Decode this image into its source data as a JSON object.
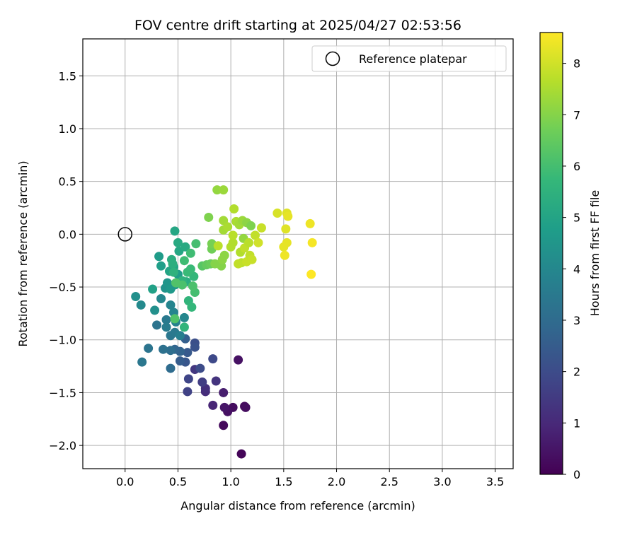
{
  "chart_data": {
    "type": "scatter",
    "title": "FOV centre drift starting at 2025/04/27 02:53:56",
    "xlabel": "Angular distance from reference (arcmin)",
    "ylabel": "Rotation from reference (arcmin)",
    "xlim": [
      -0.4,
      3.67
    ],
    "ylim": [
      -2.22,
      1.85
    ],
    "xticks": [
      0.0,
      0.5,
      1.0,
      1.5,
      2.0,
      2.5,
      3.0,
      3.5
    ],
    "xtick_labels": [
      "0.0",
      "0.5",
      "1.0",
      "1.5",
      "2.0",
      "2.5",
      "3.0",
      "3.5"
    ],
    "yticks": [
      1.5,
      1.0,
      0.5,
      0.0,
      -0.5,
      -1.0,
      -1.5,
      -2.0
    ],
    "ytick_labels": [
      "1.5",
      "1.0",
      "0.5",
      "0.0",
      "−0.5",
      "−1.0",
      "−1.5",
      "−2.0"
    ],
    "grid": true,
    "legend": {
      "position": "top-right",
      "entries": [
        {
          "label": "Reference platepar",
          "marker": "open-circle"
        }
      ]
    },
    "reference_point": {
      "x": 0.0,
      "y": 0.0
    },
    "colorbar": {
      "label": "Hours from first FF file",
      "colormap": "viridis",
      "range": [
        0,
        8.6
      ],
      "ticks": [
        0,
        1,
        2,
        3,
        4,
        5,
        6,
        7,
        8
      ],
      "tick_labels": [
        "0",
        "1",
        "2",
        "3",
        "4",
        "5",
        "6",
        "7",
        "8"
      ]
    },
    "colormap_stops": [
      "#440154",
      "#482878",
      "#3e4989",
      "#31688e",
      "#26828e",
      "#1f9e89",
      "#35b779",
      "#6ece58",
      "#b5de2b",
      "#fde725"
    ],
    "points": [
      {
        "x": 1.1,
        "y": -2.08,
        "c": 0.1
      },
      {
        "x": 0.93,
        "y": -1.81,
        "c": 0.2
      },
      {
        "x": 1.02,
        "y": -1.64,
        "c": 0.3
      },
      {
        "x": 1.13,
        "y": -1.63,
        "c": 0.2
      },
      {
        "x": 1.14,
        "y": -1.64,
        "c": 0.3
      },
      {
        "x": 0.97,
        "y": -1.68,
        "c": 0.4
      },
      {
        "x": 0.94,
        "y": -1.64,
        "c": 0.5
      },
      {
        "x": 1.07,
        "y": -1.19,
        "c": 0.4
      },
      {
        "x": 0.93,
        "y": -1.5,
        "c": 0.7
      },
      {
        "x": 0.83,
        "y": -1.62,
        "c": 0.9
      },
      {
        "x": 0.76,
        "y": -1.49,
        "c": 1.1
      },
      {
        "x": 0.76,
        "y": -1.46,
        "c": 1.2
      },
      {
        "x": 0.86,
        "y": -1.39,
        "c": 1.3
      },
      {
        "x": 0.66,
        "y": -1.28,
        "c": 1.4
      },
      {
        "x": 0.73,
        "y": -1.4,
        "c": 1.6
      },
      {
        "x": 0.59,
        "y": -1.49,
        "c": 1.7
      },
      {
        "x": 0.6,
        "y": -1.37,
        "c": 1.8
      },
      {
        "x": 0.83,
        "y": -1.18,
        "c": 1.9
      },
      {
        "x": 0.71,
        "y": -1.27,
        "c": 2.0
      },
      {
        "x": 0.66,
        "y": -1.03,
        "c": 2.1
      },
      {
        "x": 0.66,
        "y": -1.07,
        "c": 2.2
      },
      {
        "x": 0.57,
        "y": -1.21,
        "c": 2.3
      },
      {
        "x": 0.59,
        "y": -1.12,
        "c": 2.4
      },
      {
        "x": 0.52,
        "y": -1.2,
        "c": 2.5
      },
      {
        "x": 0.57,
        "y": -0.99,
        "c": 2.6
      },
      {
        "x": 0.52,
        "y": -1.11,
        "c": 2.7
      },
      {
        "x": 0.47,
        "y": -1.09,
        "c": 2.8
      },
      {
        "x": 0.43,
        "y": -1.27,
        "c": 3.0
      },
      {
        "x": 0.43,
        "y": -1.1,
        "c": 3.1
      },
      {
        "x": 0.36,
        "y": -1.09,
        "c": 3.2
      },
      {
        "x": 0.22,
        "y": -1.08,
        "c": 3.3
      },
      {
        "x": 0.16,
        "y": -1.21,
        "c": 3.4
      },
      {
        "x": 0.3,
        "y": -0.86,
        "c": 3.3
      },
      {
        "x": 0.39,
        "y": -0.81,
        "c": 3.5
      },
      {
        "x": 0.39,
        "y": -0.88,
        "c": 3.6
      },
      {
        "x": 0.43,
        "y": -0.96,
        "c": 3.4
      },
      {
        "x": 0.47,
        "y": -0.93,
        "c": 3.5
      },
      {
        "x": 0.52,
        "y": -0.96,
        "c": 3.7
      },
      {
        "x": 0.48,
        "y": -0.83,
        "c": 3.8
      },
      {
        "x": 0.43,
        "y": -0.67,
        "c": 3.9
      },
      {
        "x": 0.46,
        "y": -0.74,
        "c": 3.9
      },
      {
        "x": 0.56,
        "y": -0.79,
        "c": 4.0
      },
      {
        "x": 0.34,
        "y": -0.61,
        "c": 4.0
      },
      {
        "x": 0.15,
        "y": -0.67,
        "c": 4.1
      },
      {
        "x": 0.1,
        "y": -0.59,
        "c": 4.3
      },
      {
        "x": 0.28,
        "y": -0.72,
        "c": 4.3
      },
      {
        "x": 0.38,
        "y": -0.51,
        "c": 4.4
      },
      {
        "x": 0.4,
        "y": -0.46,
        "c": 4.5
      },
      {
        "x": 0.43,
        "y": -0.52,
        "c": 4.6
      },
      {
        "x": 0.47,
        "y": -0.48,
        "c": 4.6
      },
      {
        "x": 0.5,
        "y": -0.38,
        "c": 4.7
      },
      {
        "x": 0.34,
        "y": -0.3,
        "c": 4.8
      },
      {
        "x": 0.32,
        "y": -0.21,
        "c": 4.7
      },
      {
        "x": 0.26,
        "y": -0.52,
        "c": 4.9
      },
      {
        "x": 0.42,
        "y": -0.35,
        "c": 5.0
      },
      {
        "x": 0.46,
        "y": -0.31,
        "c": 5.0
      },
      {
        "x": 0.51,
        "y": -0.16,
        "c": 5.1
      },
      {
        "x": 0.47,
        "y": 0.03,
        "c": 5.1
      },
      {
        "x": 0.5,
        "y": -0.08,
        "c": 5.2
      },
      {
        "x": 0.57,
        "y": -0.12,
        "c": 5.2
      },
      {
        "x": 0.58,
        "y": -0.45,
        "c": 5.3
      },
      {
        "x": 0.44,
        "y": -0.24,
        "c": 5.3
      },
      {
        "x": 0.45,
        "y": -0.28,
        "c": 5.4
      },
      {
        "x": 0.46,
        "y": -0.36,
        "c": 5.5
      },
      {
        "x": 0.54,
        "y": -0.44,
        "c": 5.5
      },
      {
        "x": 0.56,
        "y": -0.88,
        "c": 5.6
      },
      {
        "x": 0.6,
        "y": -0.63,
        "c": 5.6
      },
      {
        "x": 0.63,
        "y": -0.69,
        "c": 5.7
      },
      {
        "x": 0.65,
        "y": -0.4,
        "c": 5.7
      },
      {
        "x": 0.59,
        "y": -0.36,
        "c": 5.8
      },
      {
        "x": 0.62,
        "y": -0.33,
        "c": 5.8
      },
      {
        "x": 0.56,
        "y": -0.25,
        "c": 5.9
      },
      {
        "x": 0.62,
        "y": -0.18,
        "c": 5.9
      },
      {
        "x": 0.67,
        "y": -0.09,
        "c": 6.0
      },
      {
        "x": 0.66,
        "y": -0.55,
        "c": 6.0
      },
      {
        "x": 0.64,
        "y": -0.49,
        "c": 6.1
      },
      {
        "x": 0.54,
        "y": -0.48,
        "c": 6.1
      },
      {
        "x": 0.48,
        "y": -0.46,
        "c": 6.2
      },
      {
        "x": 0.47,
        "y": -0.8,
        "c": 6.2
      },
      {
        "x": 0.73,
        "y": -0.3,
        "c": 6.3
      },
      {
        "x": 0.77,
        "y": -0.29,
        "c": 6.5
      },
      {
        "x": 0.81,
        "y": -0.28,
        "c": 6.6
      },
      {
        "x": 0.82,
        "y": -0.14,
        "c": 6.7
      },
      {
        "x": 0.82,
        "y": -0.09,
        "c": 6.8
      },
      {
        "x": 0.79,
        "y": 0.16,
        "c": 6.9
      },
      {
        "x": 0.85,
        "y": -0.28,
        "c": 7.0
      },
      {
        "x": 0.91,
        "y": -0.3,
        "c": 7.0
      },
      {
        "x": 0.92,
        "y": -0.24,
        "c": 7.1
      },
      {
        "x": 0.94,
        "y": -0.2,
        "c": 7.1
      },
      {
        "x": 0.87,
        "y": 0.42,
        "c": 7.2
      },
      {
        "x": 0.93,
        "y": 0.42,
        "c": 7.3
      },
      {
        "x": 0.93,
        "y": 0.13,
        "c": 7.4
      },
      {
        "x": 0.93,
        "y": 0.04,
        "c": 7.4
      },
      {
        "x": 0.97,
        "y": 0.07,
        "c": 7.5
      },
      {
        "x": 1.0,
        "y": -0.12,
        "c": 7.6
      },
      {
        "x": 1.02,
        "y": -0.08,
        "c": 7.6
      },
      {
        "x": 1.02,
        "y": -0.01,
        "c": 7.7
      },
      {
        "x": 1.03,
        "y": 0.24,
        "c": 7.6
      },
      {
        "x": 1.05,
        "y": 0.12,
        "c": 7.5
      },
      {
        "x": 1.08,
        "y": 0.09,
        "c": 7.4
      },
      {
        "x": 1.11,
        "y": 0.13,
        "c": 7.3
      },
      {
        "x": 1.12,
        "y": -0.04,
        "c": 7.2
      },
      {
        "x": 1.15,
        "y": 0.11,
        "c": 7.1
      },
      {
        "x": 1.19,
        "y": 0.08,
        "c": 6.9
      },
      {
        "x": 1.09,
        "y": -0.17,
        "c": 7.6
      },
      {
        "x": 1.1,
        "y": -0.27,
        "c": 7.7
      },
      {
        "x": 1.07,
        "y": -0.28,
        "c": 7.8
      },
      {
        "x": 1.13,
        "y": -0.13,
        "c": 7.8
      },
      {
        "x": 1.15,
        "y": -0.26,
        "c": 7.9
      },
      {
        "x": 1.18,
        "y": -0.2,
        "c": 7.8
      },
      {
        "x": 1.2,
        "y": -0.24,
        "c": 7.9
      },
      {
        "x": 1.17,
        "y": -0.08,
        "c": 7.7
      },
      {
        "x": 1.23,
        "y": -0.01,
        "c": 7.8
      },
      {
        "x": 1.26,
        "y": -0.08,
        "c": 8.0
      },
      {
        "x": 1.29,
        "y": 0.06,
        "c": 7.9
      },
      {
        "x": 0.88,
        "y": -0.11,
        "c": 7.7
      },
      {
        "x": 1.44,
        "y": 0.2,
        "c": 8.1
      },
      {
        "x": 1.53,
        "y": 0.2,
        "c": 8.2
      },
      {
        "x": 1.54,
        "y": 0.17,
        "c": 8.3
      },
      {
        "x": 1.52,
        "y": 0.05,
        "c": 8.2
      },
      {
        "x": 1.53,
        "y": -0.08,
        "c": 8.3
      },
      {
        "x": 1.5,
        "y": -0.12,
        "c": 8.3
      },
      {
        "x": 1.51,
        "y": -0.2,
        "c": 8.4
      },
      {
        "x": 1.75,
        "y": 0.1,
        "c": 8.4
      },
      {
        "x": 1.77,
        "y": -0.08,
        "c": 8.5
      },
      {
        "x": 1.76,
        "y": -0.38,
        "c": 8.6
      }
    ]
  }
}
